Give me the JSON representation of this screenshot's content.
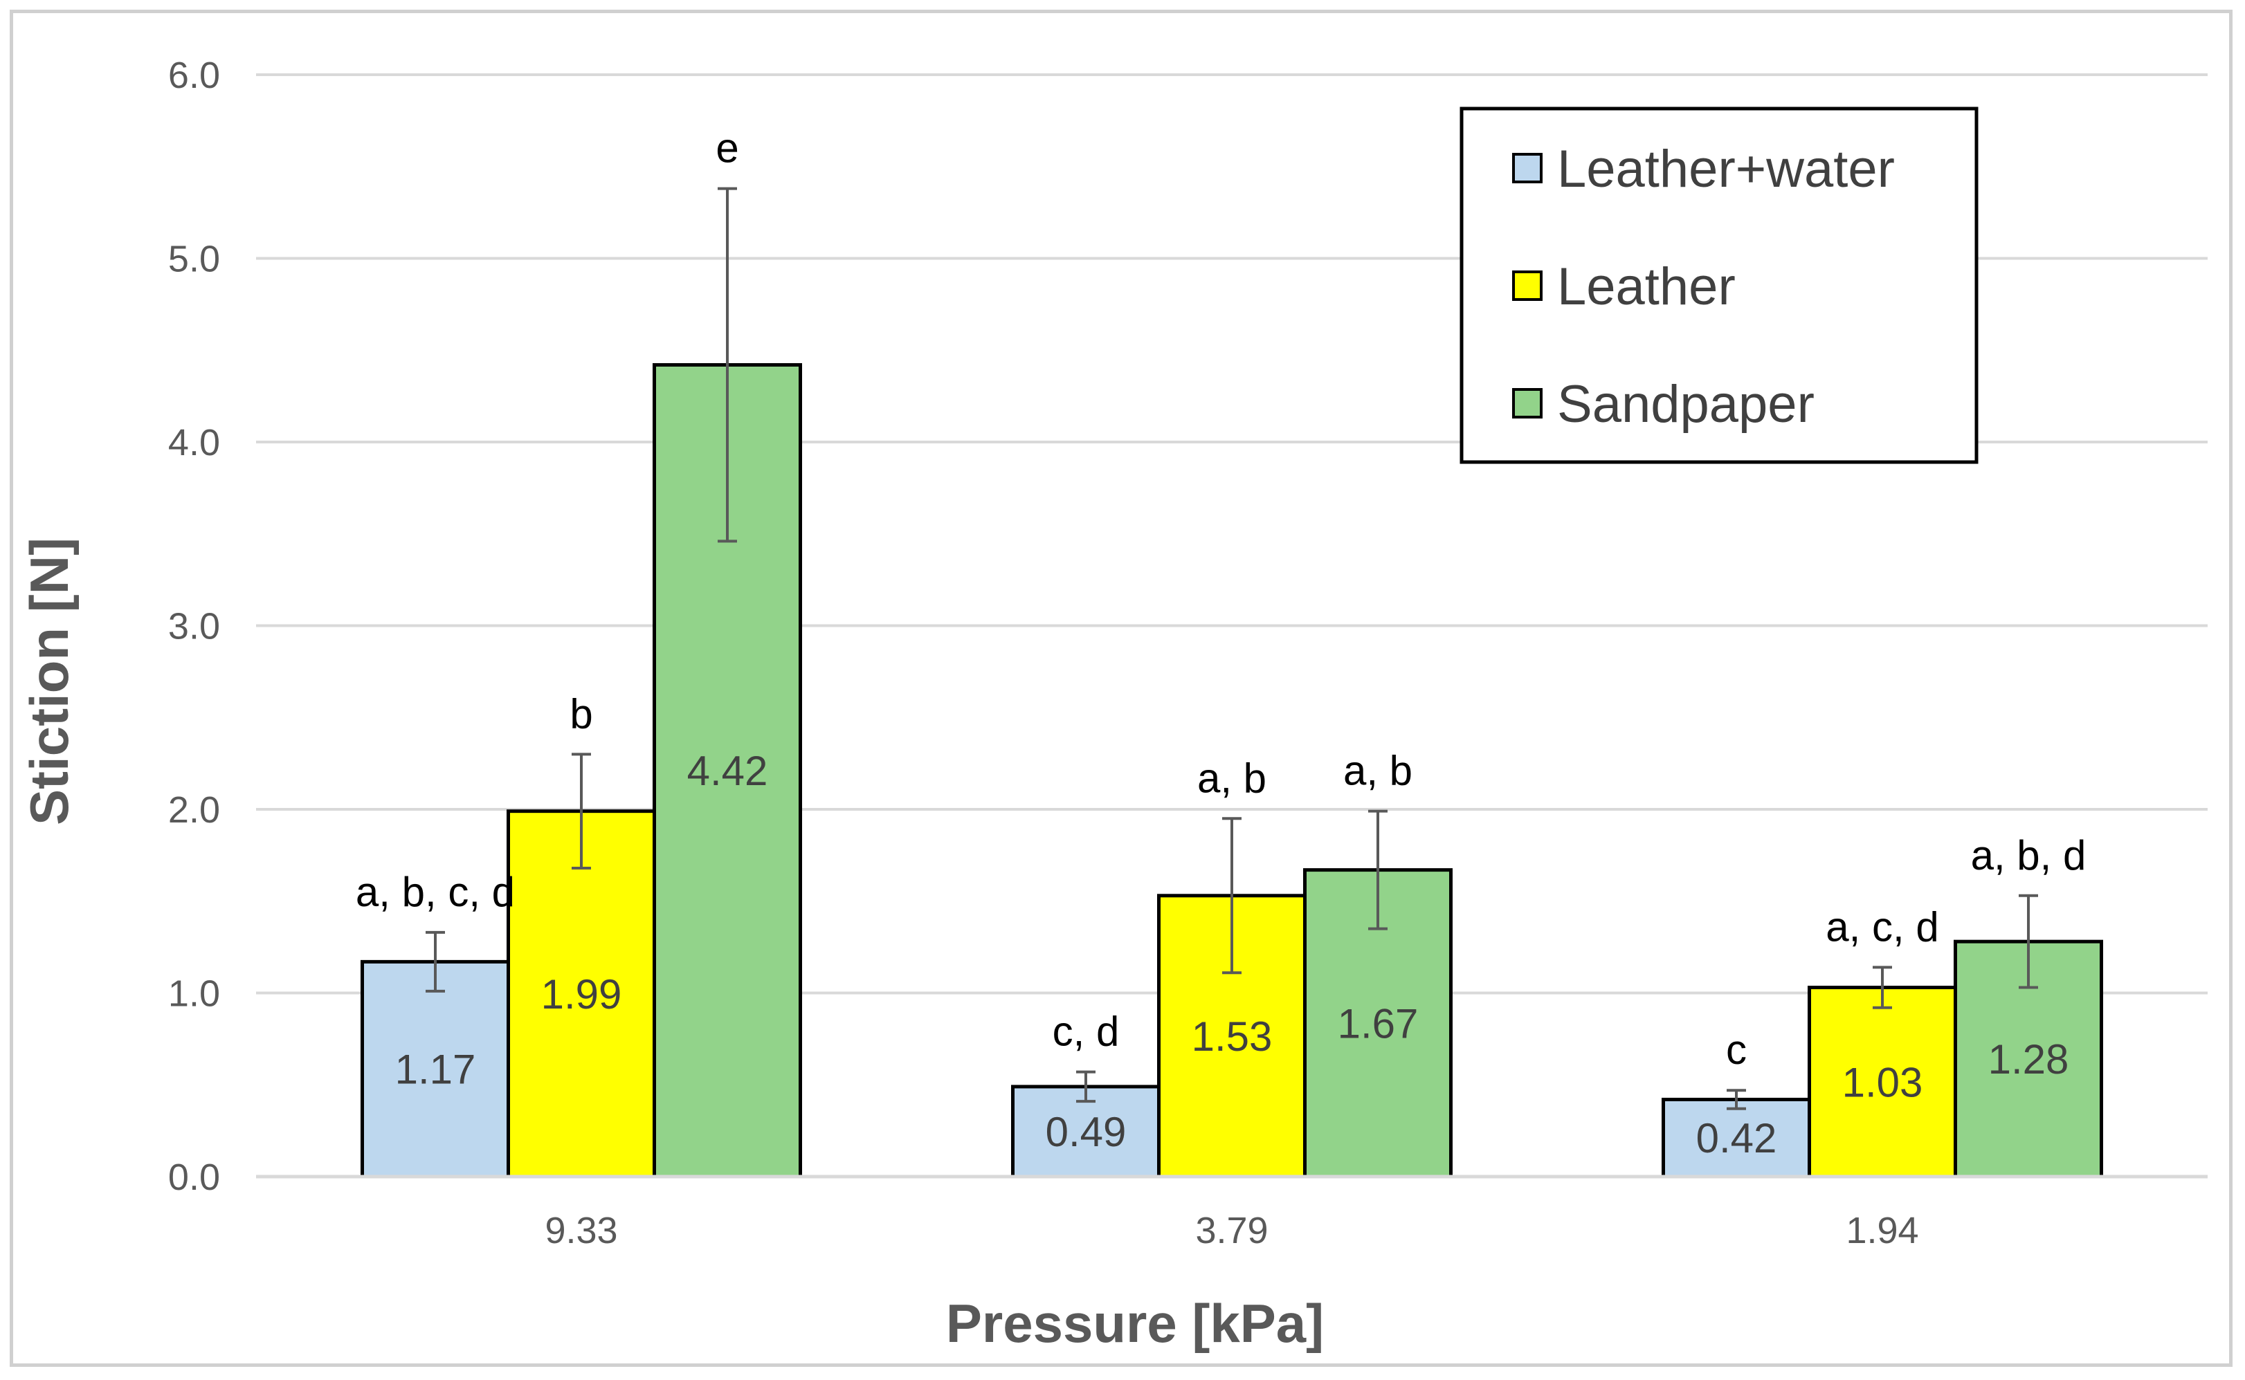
{
  "chart_data": {
    "type": "bar",
    "title": "",
    "xlabel": "Pressure [kPa]",
    "ylabel": "Stiction [N]",
    "ylim": [
      0,
      6
    ],
    "yticks": [
      "0.0",
      "1.0",
      "2.0",
      "3.0",
      "4.0",
      "5.0",
      "6.0"
    ],
    "yticks_values": [
      0,
      1,
      2,
      3,
      4,
      5,
      6
    ],
    "grid": true,
    "legend_position": "top-right",
    "categories": [
      "9.33",
      "3.79",
      "1.94"
    ],
    "series": [
      {
        "name": "Leather+water",
        "color": "#BDD7EE",
        "values": [
          1.17,
          0.49,
          0.42
        ],
        "value_labels": [
          "1.17",
          "0.49",
          "0.42"
        ],
        "error": [
          0.16,
          0.08,
          0.05
        ],
        "significance": [
          "a, b, c, d",
          "c, d",
          "c"
        ]
      },
      {
        "name": "Leather",
        "color": "#FFFF00",
        "values": [
          1.99,
          1.53,
          1.03
        ],
        "value_labels": [
          "1.99",
          "1.53",
          "1.03"
        ],
        "error": [
          0.31,
          0.42,
          0.11
        ],
        "significance": [
          "b",
          "a, b",
          "a, c, d"
        ]
      },
      {
        "name": "Sandpaper",
        "color": "#92D38A",
        "values": [
          4.42,
          1.67,
          1.28
        ],
        "value_labels": [
          "4.42",
          "1.67",
          "1.28"
        ],
        "error": [
          0.96,
          0.32,
          0.25
        ],
        "significance": [
          "e",
          "a, b",
          "a, b, d"
        ]
      }
    ]
  }
}
